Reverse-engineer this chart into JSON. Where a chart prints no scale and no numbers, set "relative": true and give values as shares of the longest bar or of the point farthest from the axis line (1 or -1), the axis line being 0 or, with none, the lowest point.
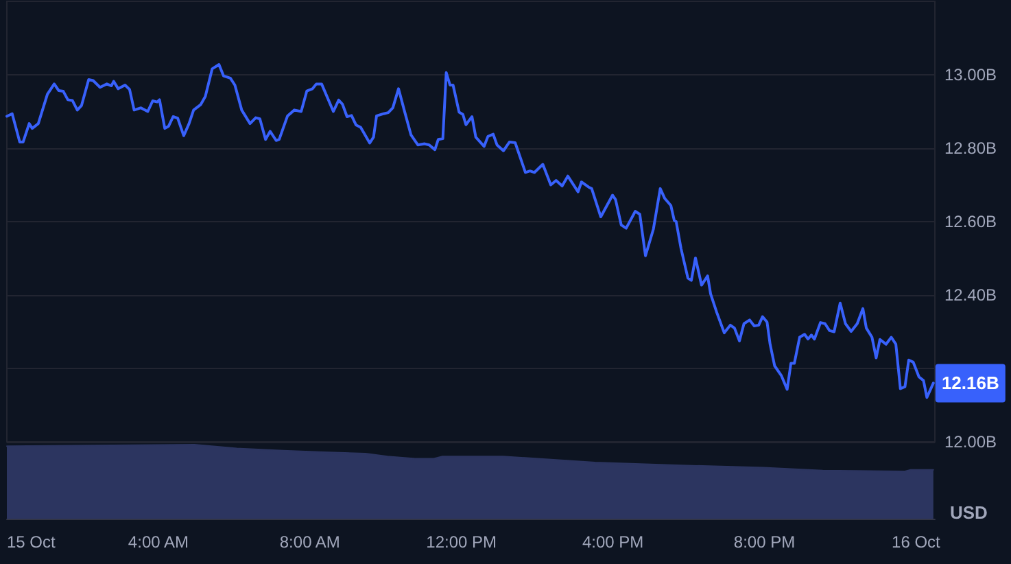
{
  "chart_data": [
    {
      "type": "line",
      "x": [
        0,
        0.14,
        0.34,
        0.43,
        0.59,
        0.67,
        0.83,
        1.07,
        1.25,
        1.37,
        1.49,
        1.61,
        1.73,
        1.86,
        1.97,
        2.16,
        2.28,
        2.46,
        2.64,
        2.76,
        2.82,
        2.94,
        3.12,
        3.24,
        3.36,
        3.54,
        3.72,
        3.85,
        3.97,
        4.03,
        4.17,
        4.27,
        4.39,
        4.51,
        4.67,
        4.81,
        4.93,
        5.12,
        5.24,
        5.42,
        5.6,
        5.72,
        5.9,
        6.02,
        6.2,
        6.42,
        6.57,
        6.68,
        6.83,
        6.95,
        7.11,
        7.19,
        7.41,
        7.59,
        7.77,
        7.92,
        8.07,
        8.17,
        8.31,
        8.62,
        8.76,
        8.86,
        8.98,
        9.1,
        9.22,
        9.34,
        9.58,
        9.68,
        9.76,
        9.95,
        10.07,
        10.19,
        10.34,
        10.49,
        10.67,
        10.85,
        11.03,
        11.15,
        11.3,
        11.39,
        11.51,
        11.6,
        11.7,
        11.78,
        11.94,
        12.04,
        12.12,
        12.28,
        12.38,
        12.6,
        12.7,
        12.84,
        12.94,
        13.11,
        13.27,
        13.42,
        13.69,
        13.81,
        13.93,
        14.15,
        14.36,
        14.5,
        14.66,
        14.81,
        15.08,
        15.17,
        15.36,
        15.44,
        15.68,
        15.99,
        16.07,
        16.22,
        16.35,
        16.59,
        16.71,
        16.86,
        17.07,
        17.25,
        17.37,
        17.53,
        17.62,
        17.67,
        17.8,
        17.98,
        18.07,
        18.18,
        18.34,
        18.5,
        18.58,
        18.74,
        18.94,
        19.1,
        19.21,
        19.34,
        19.46,
        19.61,
        19.73,
        19.85,
        19.95,
        20.07,
        20.15,
        20.27,
        20.45,
        20.6,
        20.7,
        20.79,
        20.93,
        21.06,
        21.15,
        21.24,
        21.32,
        21.48,
        21.6,
        21.72,
        21.84,
        22,
        22.14,
        22.29,
        22.45,
        22.6,
        22.69,
        22.84,
        22.95,
        23.05,
        23.21,
        23.35,
        23.47,
        23.59,
        23.71,
        23.81,
        23.93,
        24.08,
        24.2,
        24.29,
        24.46
      ],
      "series": [
        {
          "color": "#3861fb",
          "values": [
            12.887,
            12.894,
            12.817,
            12.817,
            12.867,
            12.854,
            12.867,
            12.947,
            12.975,
            12.957,
            12.955,
            12.932,
            12.93,
            12.904,
            12.916,
            12.987,
            12.984,
            12.966,
            12.975,
            12.97,
            12.982,
            12.962,
            12.972,
            12.96,
            12.904,
            12.91,
            12.9,
            12.929,
            12.926,
            12.932,
            12.854,
            12.86,
            12.886,
            12.882,
            12.834,
            12.867,
            12.904,
            12.919,
            12.941,
            13.016,
            13.028,
            12.997,
            12.991,
            12.972,
            12.904,
            12.867,
            12.883,
            12.88,
            12.824,
            12.846,
            12.821,
            12.824,
            12.888,
            12.904,
            12.9,
            12.956,
            12.962,
            12.975,
            12.975,
            12.9,
            12.931,
            12.92,
            12.886,
            12.889,
            12.863,
            12.857,
            12.814,
            12.83,
            12.888,
            12.894,
            12.897,
            12.91,
            12.962,
            12.904,
            12.836,
            12.809,
            12.812,
            12.809,
            12.796,
            12.824,
            12.826,
            13.006,
            12.972,
            12.972,
            12.898,
            12.892,
            12.864,
            12.886,
            12.83,
            12.805,
            12.832,
            12.838,
            12.809,
            12.793,
            12.817,
            12.815,
            12.734,
            12.738,
            12.734,
            12.756,
            12.7,
            12.712,
            12.697,
            12.724,
            12.681,
            12.708,
            12.694,
            12.69,
            12.613,
            12.672,
            12.66,
            12.591,
            12.582,
            12.628,
            12.62,
            12.507,
            12.58,
            12.69,
            12.663,
            12.644,
            12.603,
            12.6,
            12.526,
            12.446,
            12.44,
            12.501,
            12.427,
            12.452,
            12.403,
            12.353,
            12.297,
            12.318,
            12.31,
            12.275,
            12.322,
            12.332,
            12.316,
            12.318,
            12.341,
            12.326,
            12.266,
            12.207,
            12.18,
            12.143,
            12.214,
            12.214,
            12.285,
            12.293,
            12.28,
            12.291,
            12.28,
            12.325,
            12.322,
            12.303,
            12.3,
            12.378,
            12.322,
            12.301,
            12.322,
            12.363,
            12.31,
            12.285,
            12.229,
            12.279,
            12.266,
            12.285,
            12.266,
            12.145,
            12.15,
            12.223,
            12.217,
            12.177,
            12.167,
            12.121,
            12.16
          ]
        }
      ],
      "xlim": [
        0,
        24.5
      ],
      "ylim": [
        12.0,
        13.2
      ],
      "yticks": [
        {
          "value": 12.0,
          "label": "12.00B"
        },
        {
          "value": 12.2,
          "label": null
        },
        {
          "value": 12.4,
          "label": "12.40B"
        },
        {
          "value": 12.6,
          "label": "12.60B"
        },
        {
          "value": 12.8,
          "label": "12.80B"
        },
        {
          "value": 13.0,
          "label": "13.00B"
        }
      ],
      "ylabel": "USD",
      "grid": "y",
      "marker": "none",
      "tick_labels": "y",
      "annotations": [
        {
          "text": "12.16B",
          "x": 24.46,
          "y": 12.16
        }
      ]
    },
    {
      "type": "area",
      "relative": true,
      "x": [
        0,
        4.95,
        6.07,
        7.3,
        8.24,
        9.47,
        10.05,
        10.78,
        11.27,
        11.5,
        13.1,
        15.53,
        17.81,
        19.98,
        21.54,
        23.71,
        23.86,
        24.46
      ],
      "series": [
        {
          "color": "#2c3560",
          "values": [
            0.98,
            1,
            0.95,
            0.92,
            0.9,
            0.88,
            0.84,
            0.81,
            0.81,
            0.84,
            0.84,
            0.76,
            0.72,
            0.69,
            0.65,
            0.64,
            0.66,
            0.66
          ]
        }
      ],
      "xlim": [
        0,
        24.5
      ],
      "xticks": [
        {
          "value": 0,
          "label": "15 Oct"
        },
        {
          "value": 4,
          "label": "4:00 AM"
        },
        {
          "value": 8,
          "label": "8:00 AM"
        },
        {
          "value": 12,
          "label": "12:00 PM"
        },
        {
          "value": 16,
          "label": "4:00 PM"
        },
        {
          "value": 20,
          "label": "8:00 PM"
        },
        {
          "value": 24,
          "label": "16 Oct"
        }
      ],
      "tick_labels": "x",
      "marker": "none"
    }
  ]
}
